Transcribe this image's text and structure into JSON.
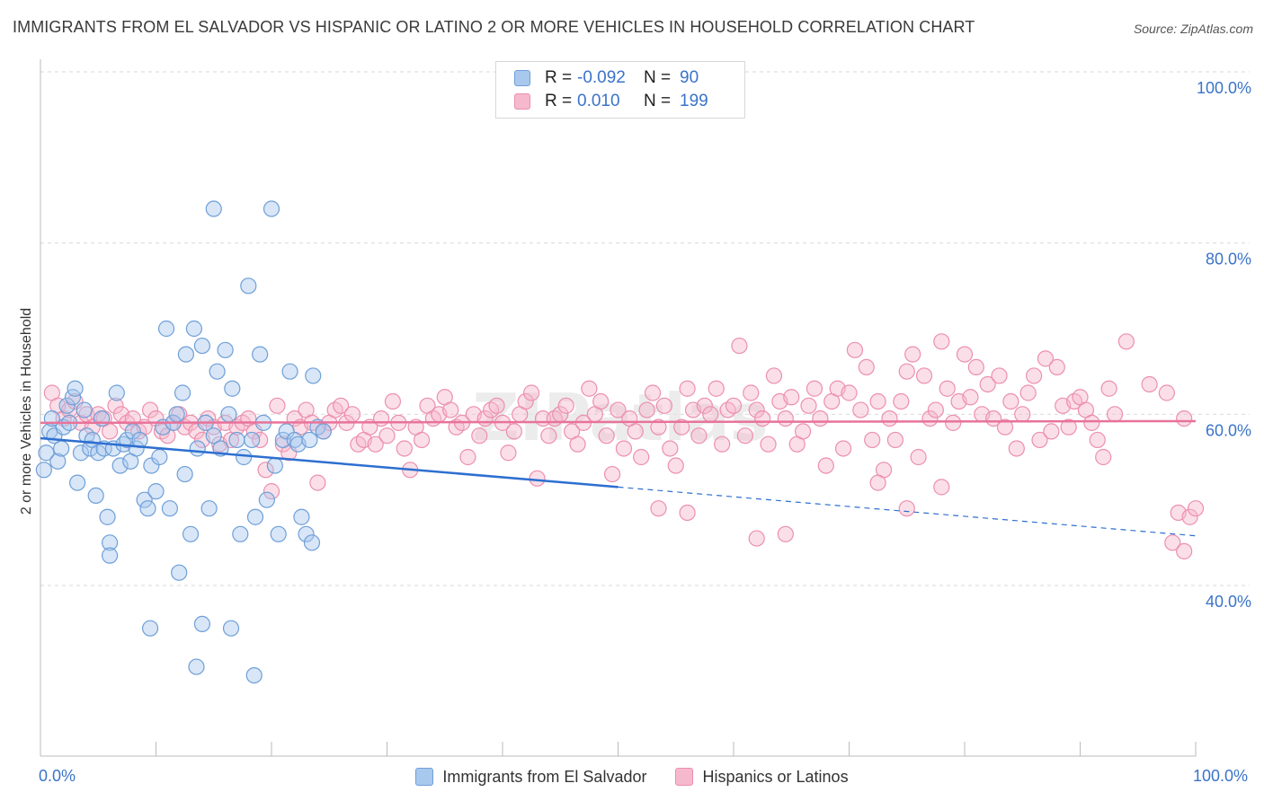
{
  "title": "IMMIGRANTS FROM EL SALVADOR VS HISPANIC OR LATINO 2 OR MORE VEHICLES IN HOUSEHOLD CORRELATION CHART",
  "source": "Source: ZipAtlas.com",
  "watermark": "ZIPatlas",
  "legend": {
    "rows": [
      {
        "r_label": "R =",
        "r_value": "-0.092",
        "n_label": "N =",
        "n_value": "90"
      },
      {
        "r_label": "R =",
        "r_value": "0.010",
        "n_label": "N =",
        "n_value": "199"
      }
    ]
  },
  "colors": {
    "blue_fill": "#a9c8ee",
    "blue_stroke": "#6e9fd8",
    "blue_line": "#2d6fd0",
    "pink_fill": "#f6b8cc",
    "pink_stroke": "#ec8fae",
    "pink_line": "#e8739a",
    "accent_text": "#3b73c8",
    "grid": "#d9d9d9"
  },
  "chart_data": {
    "type": "scatter",
    "title": "IMMIGRANTS FROM EL SALVADOR VS HISPANIC OR LATINO 2 OR MORE VEHICLES IN HOUSEHOLD CORRELATION CHART",
    "xlabel": "",
    "ylabel": "2 or more Vehicles in Household",
    "xlim": [
      0,
      100
    ],
    "ylim": [
      20,
      102
    ],
    "x_tick_labels": [
      "0.0%",
      "100.0%"
    ],
    "y_tick_labels": [
      {
        "value": 100,
        "label": "100.0%"
      },
      {
        "value": 80,
        "label": "80.0%"
      },
      {
        "value": 60,
        "label": "60.0%"
      },
      {
        "value": 40,
        "label": "40.0%"
      }
    ],
    "grid": true,
    "legend_position": "top-center",
    "series": [
      {
        "name": "Immigrants from El Salvador",
        "color": "#a9c8ee",
        "trend": {
          "x": [
            0,
            50
          ],
          "y": [
            57.2,
            51.5
          ],
          "dashed_extension": {
            "x": [
              50,
              100
            ],
            "y": [
              51.5,
              45.8
            ]
          }
        },
        "points": [
          [
            0.3,
            53.5
          ],
          [
            0.5,
            55.5
          ],
          [
            0.8,
            58.0
          ],
          [
            1.0,
            59.5
          ],
          [
            1.2,
            57.5
          ],
          [
            1.5,
            54.5
          ],
          [
            1.8,
            56.0
          ],
          [
            2.0,
            58.5
          ],
          [
            2.3,
            61.0
          ],
          [
            2.5,
            59.0
          ],
          [
            2.8,
            62.0
          ],
          [
            3.0,
            63.0
          ],
          [
            3.2,
            52.0
          ],
          [
            3.5,
            55.5
          ],
          [
            3.8,
            60.5
          ],
          [
            4.0,
            57.5
          ],
          [
            4.3,
            56.0
          ],
          [
            4.5,
            57.0
          ],
          [
            4.8,
            50.5
          ],
          [
            5.0,
            55.5
          ],
          [
            5.3,
            59.5
          ],
          [
            5.5,
            56.0
          ],
          [
            5.8,
            48.0
          ],
          [
            6.0,
            45.0
          ],
          [
            6.3,
            56.0
          ],
          [
            6.6,
            62.5
          ],
          [
            6.9,
            54.0
          ],
          [
            7.2,
            56.5
          ],
          [
            7.5,
            57.0
          ],
          [
            7.8,
            54.5
          ],
          [
            8.0,
            58.0
          ],
          [
            8.3,
            56.0
          ],
          [
            8.6,
            57.0
          ],
          [
            9.0,
            50.0
          ],
          [
            9.3,
            49.0
          ],
          [
            9.6,
            54.0
          ],
          [
            10.0,
            51.0
          ],
          [
            10.3,
            55.0
          ],
          [
            10.6,
            58.5
          ],
          [
            10.9,
            70.0
          ],
          [
            11.2,
            49.0
          ],
          [
            11.5,
            59.0
          ],
          [
            11.8,
            60.0
          ],
          [
            12.0,
            41.5
          ],
          [
            12.3,
            62.5
          ],
          [
            12.6,
            67.0
          ],
          [
            13.0,
            46.0
          ],
          [
            13.3,
            70.0
          ],
          [
            13.6,
            56.0
          ],
          [
            14.0,
            68.0
          ],
          [
            14.3,
            59.0
          ],
          [
            14.6,
            49.0
          ],
          [
            15.0,
            57.5
          ],
          [
            15.3,
            65.0
          ],
          [
            15.6,
            56.0
          ],
          [
            16.0,
            67.5
          ],
          [
            16.3,
            60.0
          ],
          [
            16.6,
            63.0
          ],
          [
            17.0,
            57.0
          ],
          [
            17.3,
            46.0
          ],
          [
            17.6,
            55.0
          ],
          [
            18.0,
            75.0
          ],
          [
            18.3,
            57.0
          ],
          [
            18.6,
            48.0
          ],
          [
            19.0,
            67.0
          ],
          [
            19.3,
            59.0
          ],
          [
            19.6,
            50.0
          ],
          [
            20.0,
            84.0
          ],
          [
            20.3,
            54.0
          ],
          [
            20.6,
            46.0
          ],
          [
            21.0,
            57.0
          ],
          [
            21.3,
            58.0
          ],
          [
            21.6,
            65.0
          ],
          [
            22.0,
            57.0
          ],
          [
            22.3,
            56.5
          ],
          [
            22.6,
            48.0
          ],
          [
            23.0,
            46.0
          ],
          [
            23.3,
            57.0
          ],
          [
            23.6,
            64.5
          ],
          [
            24.0,
            58.5
          ],
          [
            15.0,
            84.0
          ],
          [
            14.0,
            35.5
          ],
          [
            16.5,
            35.0
          ],
          [
            9.5,
            35.0
          ],
          [
            13.5,
            30.5
          ],
          [
            18.5,
            29.5
          ],
          [
            23.5,
            45.0
          ],
          [
            24.5,
            58.0
          ],
          [
            12.5,
            53.0
          ],
          [
            6.0,
            43.5
          ]
        ]
      },
      {
        "name": "Hispanics or Latinos",
        "color": "#f6b8cc",
        "trend": {
          "x": [
            0,
            100
          ],
          "y": [
            59.0,
            59.2
          ]
        },
        "points": [
          [
            1.0,
            62.5
          ],
          [
            1.5,
            61.0
          ],
          [
            2.0,
            59.5
          ],
          [
            2.5,
            60.5
          ],
          [
            3.0,
            61.5
          ],
          [
            3.5,
            59.0
          ],
          [
            4.0,
            60.0
          ],
          [
            4.5,
            58.5
          ],
          [
            5.0,
            60.0
          ],
          [
            5.5,
            59.5
          ],
          [
            6.0,
            58.0
          ],
          [
            6.5,
            61.0
          ],
          [
            7.0,
            60.0
          ],
          [
            7.5,
            59.0
          ],
          [
            8.0,
            59.5
          ],
          [
            8.5,
            58.0
          ],
          [
            9.0,
            58.5
          ],
          [
            9.5,
            60.5
          ],
          [
            10.0,
            59.5
          ],
          [
            10.5,
            58.0
          ],
          [
            11.0,
            57.5
          ],
          [
            11.5,
            59.0
          ],
          [
            12.0,
            60.0
          ],
          [
            12.5,
            58.5
          ],
          [
            13.0,
            59.0
          ],
          [
            13.5,
            58.0
          ],
          [
            14.0,
            57.0
          ],
          [
            14.5,
            59.5
          ],
          [
            15.0,
            58.5
          ],
          [
            15.5,
            56.5
          ],
          [
            16.0,
            59.0
          ],
          [
            16.5,
            57.0
          ],
          [
            17.0,
            58.5
          ],
          [
            17.5,
            59.0
          ],
          [
            18.0,
            59.5
          ],
          [
            18.5,
            58.0
          ],
          [
            19.0,
            57.0
          ],
          [
            19.5,
            53.5
          ],
          [
            20.0,
            51.0
          ],
          [
            20.5,
            61.0
          ],
          [
            21.0,
            56.5
          ],
          [
            21.5,
            55.5
          ],
          [
            22.0,
            59.5
          ],
          [
            22.5,
            58.5
          ],
          [
            23.0,
            60.5
          ],
          [
            23.5,
            59.0
          ],
          [
            24.0,
            52.0
          ],
          [
            24.5,
            58.0
          ],
          [
            25.0,
            59.0
          ],
          [
            25.5,
            60.5
          ],
          [
            26.0,
            61.0
          ],
          [
            26.5,
            59.0
          ],
          [
            27.0,
            60.0
          ],
          [
            27.5,
            56.5
          ],
          [
            28.0,
            57.0
          ],
          [
            28.5,
            58.5
          ],
          [
            29.0,
            56.5
          ],
          [
            29.5,
            59.5
          ],
          [
            30.0,
            57.5
          ],
          [
            30.5,
            61.5
          ],
          [
            31.0,
            59.0
          ],
          [
            31.5,
            56.0
          ],
          [
            32.0,
            53.5
          ],
          [
            32.5,
            58.5
          ],
          [
            33.0,
            57.0
          ],
          [
            33.5,
            61.0
          ],
          [
            34.0,
            59.5
          ],
          [
            34.5,
            60.0
          ],
          [
            35.0,
            62.0
          ],
          [
            35.5,
            60.5
          ],
          [
            36.0,
            58.5
          ],
          [
            36.5,
            59.0
          ],
          [
            37.0,
            55.0
          ],
          [
            37.5,
            60.0
          ],
          [
            38.0,
            57.5
          ],
          [
            38.5,
            59.5
          ],
          [
            39.0,
            60.5
          ],
          [
            39.5,
            61.0
          ],
          [
            40.0,
            59.0
          ],
          [
            40.5,
            55.5
          ],
          [
            41.0,
            58.0
          ],
          [
            41.5,
            60.0
          ],
          [
            42.0,
            61.5
          ],
          [
            42.5,
            62.5
          ],
          [
            43.0,
            52.5
          ],
          [
            43.5,
            59.5
          ],
          [
            44.0,
            57.5
          ],
          [
            44.5,
            59.5
          ],
          [
            45.0,
            60.0
          ],
          [
            45.5,
            61.0
          ],
          [
            46.0,
            58.0
          ],
          [
            46.5,
            56.5
          ],
          [
            47.0,
            59.0
          ],
          [
            47.5,
            63.0
          ],
          [
            48.0,
            60.0
          ],
          [
            48.5,
            61.5
          ],
          [
            49.0,
            57.5
          ],
          [
            49.5,
            53.0
          ],
          [
            50.0,
            60.5
          ],
          [
            50.5,
            56.0
          ],
          [
            51.0,
            59.5
          ],
          [
            51.5,
            58.0
          ],
          [
            52.0,
            55.0
          ],
          [
            52.5,
            60.5
          ],
          [
            53.0,
            62.5
          ],
          [
            53.5,
            58.5
          ],
          [
            54.0,
            61.0
          ],
          [
            54.5,
            56.0
          ],
          [
            55.0,
            54.0
          ],
          [
            55.5,
            58.5
          ],
          [
            56.0,
            63.0
          ],
          [
            56.5,
            60.5
          ],
          [
            57.0,
            57.5
          ],
          [
            57.5,
            61.0
          ],
          [
            58.0,
            60.0
          ],
          [
            58.5,
            63.0
          ],
          [
            59.0,
            56.5
          ],
          [
            59.5,
            60.5
          ],
          [
            60.0,
            61.0
          ],
          [
            60.5,
            68.0
          ],
          [
            61.0,
            57.5
          ],
          [
            61.5,
            62.5
          ],
          [
            62.0,
            60.5
          ],
          [
            62.5,
            59.5
          ],
          [
            63.0,
            56.5
          ],
          [
            63.5,
            64.5
          ],
          [
            64.0,
            61.5
          ],
          [
            64.5,
            59.5
          ],
          [
            65.0,
            62.0
          ],
          [
            65.5,
            56.5
          ],
          [
            66.0,
            58.0
          ],
          [
            66.5,
            61.0
          ],
          [
            67.0,
            63.0
          ],
          [
            67.5,
            59.5
          ],
          [
            68.0,
            54.0
          ],
          [
            68.5,
            61.5
          ],
          [
            69.0,
            63.0
          ],
          [
            69.5,
            56.0
          ],
          [
            70.0,
            62.5
          ],
          [
            70.5,
            67.5
          ],
          [
            71.0,
            60.5
          ],
          [
            71.5,
            65.5
          ],
          [
            72.0,
            57.0
          ],
          [
            72.5,
            61.5
          ],
          [
            73.0,
            53.5
          ],
          [
            73.5,
            59.5
          ],
          [
            74.0,
            57.0
          ],
          [
            74.5,
            61.5
          ],
          [
            75.0,
            65.0
          ],
          [
            75.5,
            67.0
          ],
          [
            76.0,
            55.0
          ],
          [
            76.5,
            64.5
          ],
          [
            77.0,
            59.5
          ],
          [
            77.5,
            60.5
          ],
          [
            78.0,
            68.5
          ],
          [
            78.5,
            63.0
          ],
          [
            79.0,
            59.0
          ],
          [
            79.5,
            61.5
          ],
          [
            80.0,
            67.0
          ],
          [
            80.5,
            62.0
          ],
          [
            81.0,
            65.5
          ],
          [
            81.5,
            60.0
          ],
          [
            82.0,
            63.5
          ],
          [
            82.5,
            59.5
          ],
          [
            83.0,
            64.5
          ],
          [
            83.5,
            58.5
          ],
          [
            84.0,
            61.5
          ],
          [
            84.5,
            56.0
          ],
          [
            85.0,
            60.0
          ],
          [
            85.5,
            62.5
          ],
          [
            86.0,
            64.5
          ],
          [
            86.5,
            57.0
          ],
          [
            87.0,
            66.5
          ],
          [
            87.5,
            58.0
          ],
          [
            88.0,
            65.5
          ],
          [
            88.5,
            61.0
          ],
          [
            89.0,
            58.5
          ],
          [
            89.5,
            61.5
          ],
          [
            90.0,
            62.0
          ],
          [
            90.5,
            60.5
          ],
          [
            91.0,
            59.0
          ],
          [
            91.5,
            57.0
          ],
          [
            92.0,
            55.0
          ],
          [
            92.5,
            63.0
          ],
          [
            93.0,
            60.0
          ],
          [
            94.0,
            68.5
          ],
          [
            96.0,
            63.5
          ],
          [
            97.5,
            62.5
          ],
          [
            98.0,
            45.0
          ],
          [
            98.5,
            48.5
          ],
          [
            99.0,
            59.5
          ],
          [
            99.5,
            48.0
          ],
          [
            100.0,
            49.0
          ],
          [
            99.0,
            44.0
          ],
          [
            62.0,
            45.5
          ],
          [
            64.5,
            46.0
          ],
          [
            72.5,
            52.0
          ],
          [
            75.0,
            49.0
          ],
          [
            78.0,
            51.5
          ],
          [
            53.5,
            49.0
          ],
          [
            56.0,
            48.5
          ]
        ]
      }
    ]
  },
  "bottom_legend": [
    "Immigrants from El Salvador",
    "Hispanics or Latinos"
  ]
}
